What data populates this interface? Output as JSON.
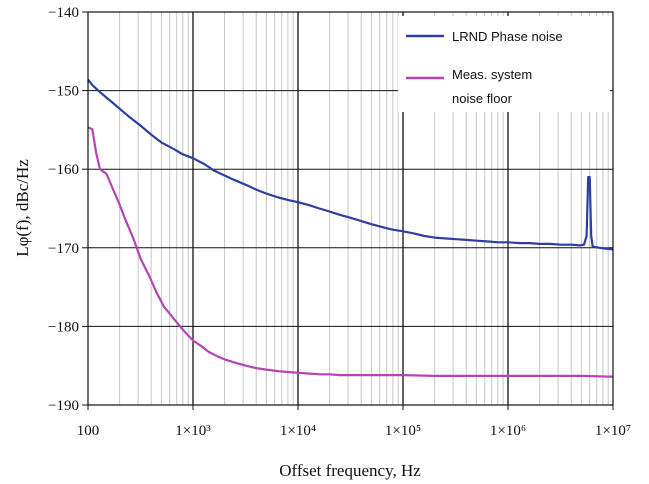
{
  "chart_data": {
    "type": "line",
    "x_scale": "log",
    "xlim": [
      100,
      10000000
    ],
    "ylim": [
      -190,
      -140
    ],
    "xlabel": "Offset frequency, Hz",
    "ylabel": "Lφ(f), dBc/Hz",
    "grid": true,
    "legend_position": "top-right",
    "x_tick_labels": [
      "100",
      "1×10³",
      "1×10⁴",
      "1×10⁵",
      "1×10⁶",
      "1×10⁷"
    ],
    "y_tick_labels": [
      "−140",
      "−150",
      "−160",
      "−170",
      "−180",
      "−190"
    ],
    "series": [
      {
        "name": "LRND Phase noise",
        "color": "#2e3fa3",
        "x": [
          100,
          110,
          130,
          160,
          200,
          250,
          320,
          400,
          500,
          650,
          800,
          1000,
          1300,
          1600,
          2000,
          2500,
          3200,
          4000,
          5000,
          6500,
          8000,
          10000,
          13000,
          16000,
          20000,
          25000,
          32000,
          40000,
          50000,
          65000,
          80000,
          100000,
          130000,
          160000,
          200000,
          250000,
          320000,
          400000,
          500000,
          650000,
          800000,
          1000000,
          1300000,
          1600000,
          2000000,
          2500000,
          3200000,
          4000000,
          4800000,
          5300000,
          5600000,
          5800000,
          6000000,
          6200000,
          6400000,
          6700000,
          7500000,
          8500000,
          10000000
        ],
        "values": [
          -148.6,
          -149.3,
          -150.2,
          -151.2,
          -152.3,
          -153.4,
          -154.5,
          -155.6,
          -156.6,
          -157.4,
          -158.1,
          -158.6,
          -159.4,
          -160.2,
          -160.8,
          -161.4,
          -162.0,
          -162.6,
          -163.1,
          -163.6,
          -163.9,
          -164.2,
          -164.6,
          -165.0,
          -165.4,
          -165.8,
          -166.2,
          -166.6,
          -167.0,
          -167.4,
          -167.7,
          -167.9,
          -168.2,
          -168.5,
          -168.7,
          -168.8,
          -168.9,
          -169.0,
          -169.1,
          -169.2,
          -169.3,
          -169.3,
          -169.4,
          -169.4,
          -169.5,
          -169.5,
          -169.6,
          -169.6,
          -169.7,
          -169.6,
          -168.5,
          -161.0,
          -161.0,
          -168.5,
          -169.8,
          -169.9,
          -170.0,
          -170.1,
          -170.2
        ]
      },
      {
        "name": "Meas. system noise floor",
        "color": "#b543b5",
        "x": [
          100,
          110,
          120,
          130,
          150,
          170,
          200,
          230,
          270,
          320,
          380,
          450,
          530,
          620,
          720,
          850,
          1000,
          1200,
          1400,
          1700,
          2000,
          2500,
          3200,
          4000,
          5000,
          6500,
          8000,
          10000,
          13000,
          16000,
          20000,
          25000,
          32000,
          40000,
          50000,
          65000,
          80000,
          100000,
          200000,
          500000,
          1000000,
          2000000,
          5000000,
          10000000
        ],
        "values": [
          -154.7,
          -154.9,
          -158.0,
          -160.0,
          -160.6,
          -162.3,
          -164.5,
          -166.6,
          -168.8,
          -171.5,
          -173.5,
          -175.7,
          -177.5,
          -178.6,
          -179.7,
          -180.8,
          -181.8,
          -182.5,
          -183.2,
          -183.8,
          -184.2,
          -184.6,
          -185.0,
          -185.3,
          -185.5,
          -185.7,
          -185.8,
          -185.9,
          -186.0,
          -186.1,
          -186.1,
          -186.2,
          -186.2,
          -186.2,
          -186.2,
          -186.2,
          -186.2,
          -186.2,
          -186.3,
          -186.3,
          -186.3,
          -186.3,
          -186.3,
          -186.4
        ]
      }
    ]
  }
}
